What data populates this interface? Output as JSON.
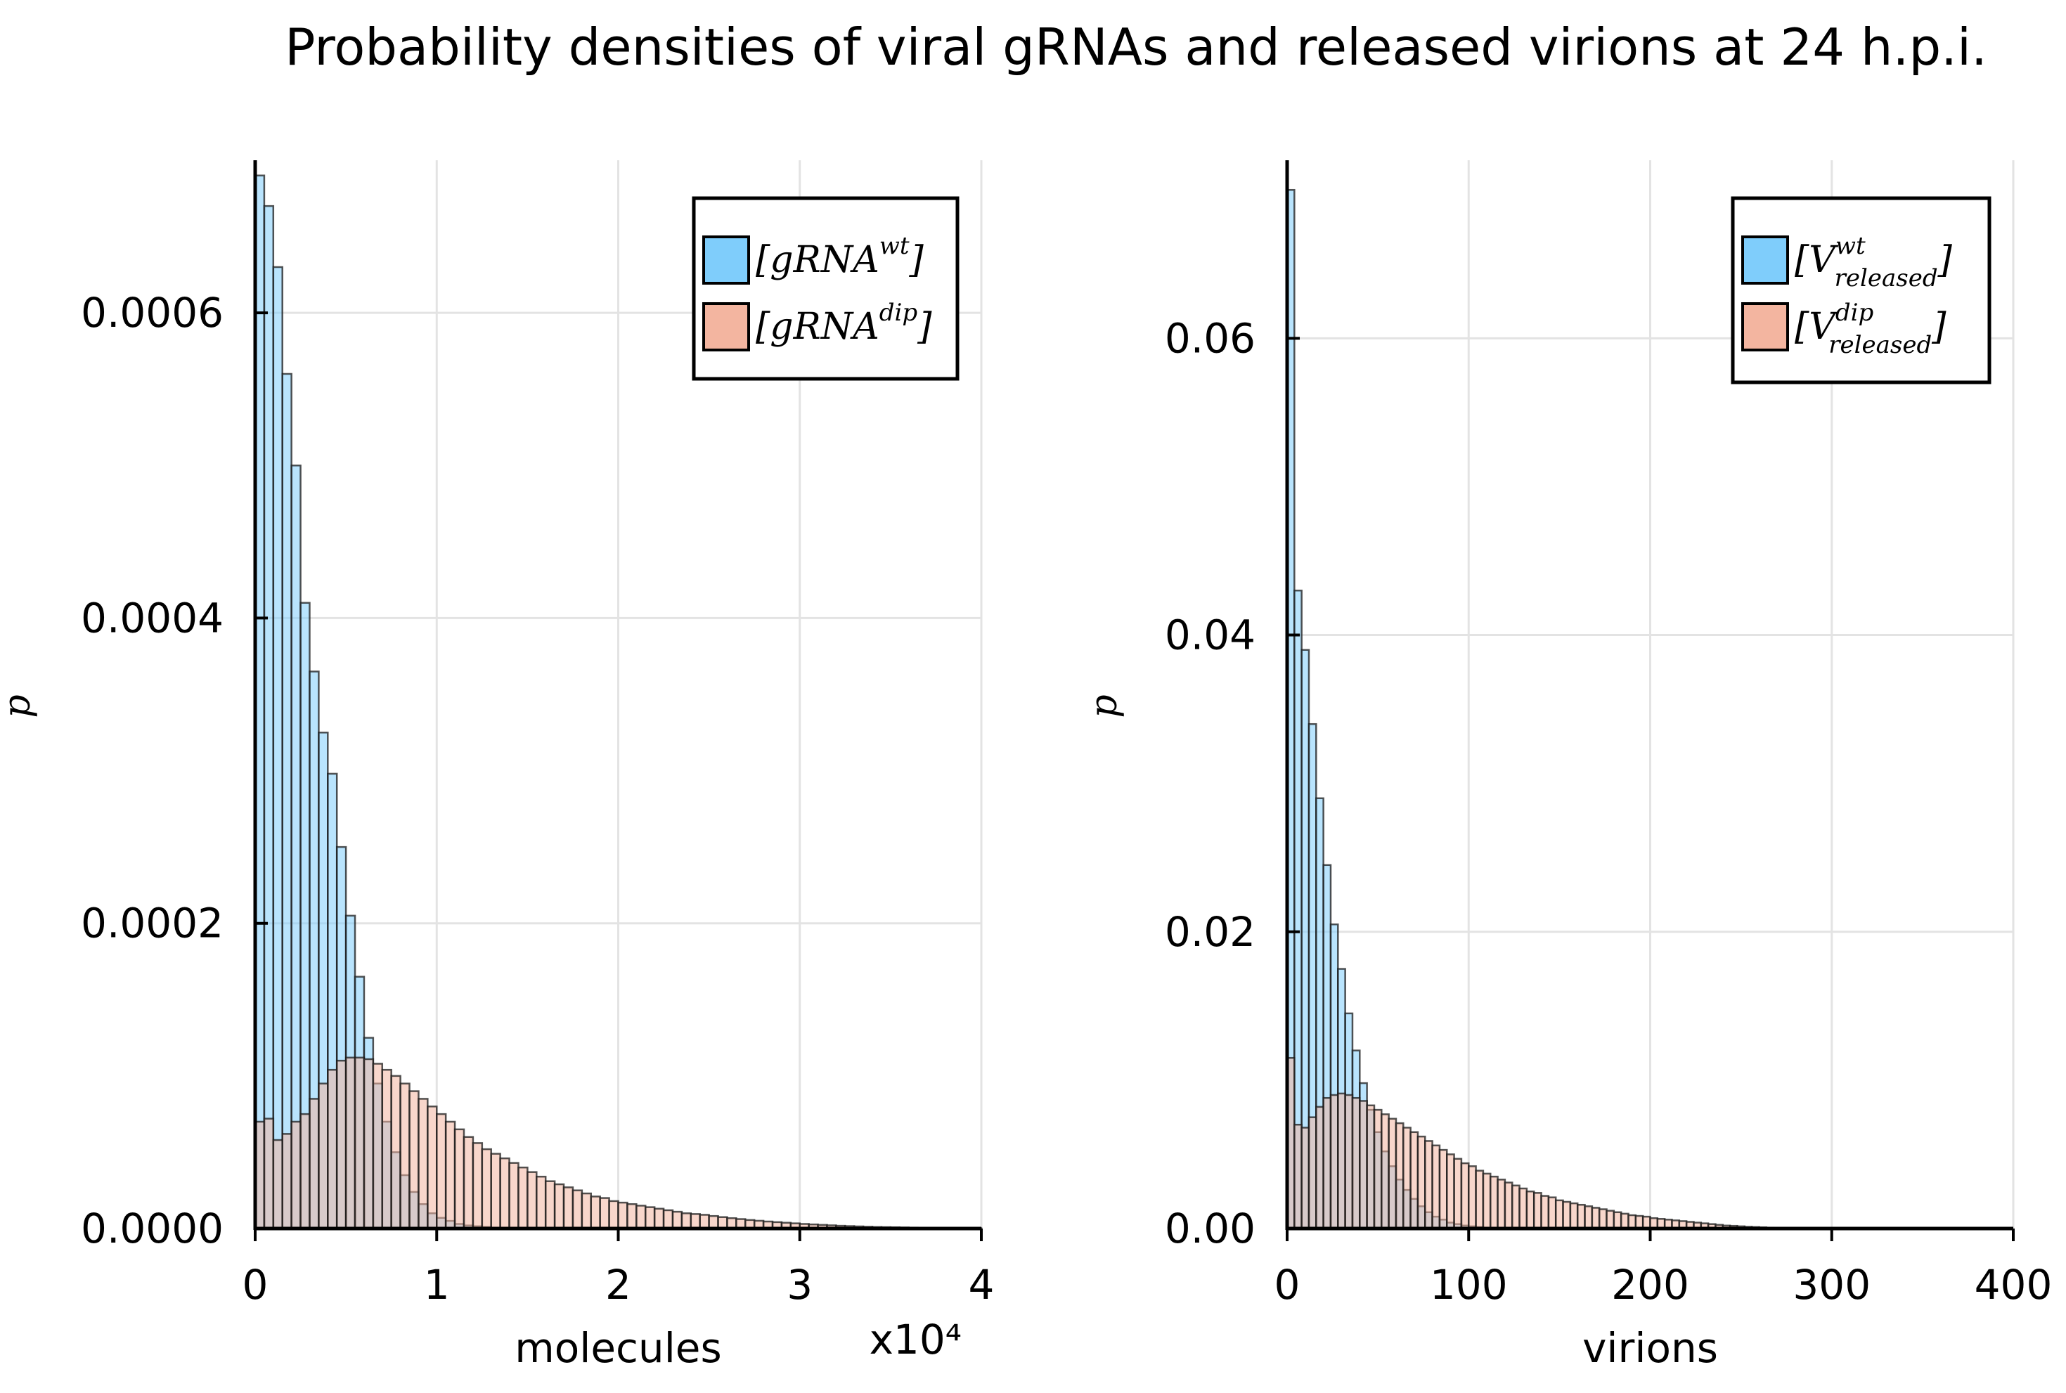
{
  "figure": {
    "title": "Probability densities of viral gRNAs and released virions at 24 h.p.i."
  },
  "colors": {
    "wt": "#7fcdfb",
    "dip": "#f3b5a0",
    "bar_outline": "#1a1a1a",
    "grid": "#e3e3e3"
  },
  "chart_data": [
    {
      "type": "bar",
      "title": "",
      "xlabel": "molecules",
      "ylabel": "p",
      "xlim": [
        0,
        40000
      ],
      "ylim": [
        0,
        0.0007
      ],
      "x_ticks": [
        "0",
        "1",
        "2",
        "3",
        "4"
      ],
      "x_tick_values": [
        0,
        10000,
        20000,
        30000,
        40000
      ],
      "x_multiplier": "x10⁴",
      "y_ticks": [
        "0.0000",
        "0.0002",
        "0.0004",
        "0.0006"
      ],
      "y_tick_values": [
        0,
        0.0002,
        0.0004,
        0.0006
      ],
      "grid": true,
      "legend_position": "top-right",
      "bin_width": 500,
      "series": [
        {
          "name": "wt",
          "legend": {
            "base": "[gRNA",
            "sup": "wt",
            "close": "]"
          },
          "values": [
            0.00069,
            0.00067,
            0.00063,
            0.00056,
            0.0005,
            0.00041,
            0.000365,
            0.000325,
            0.000298,
            0.00025,
            0.000205,
            0.000165,
            0.000125,
            9.5e-05,
            7e-05,
            5e-05,
            3.5e-05,
            2.4e-05,
            1.6e-05,
            1e-05,
            7e-06,
            5e-06,
            3e-06,
            2e-06,
            1.5e-06,
            1e-06
          ]
        },
        {
          "name": "dip",
          "legend": {
            "base": "[gRNA",
            "sup": "dip",
            "close": "]"
          },
          "values": [
            7e-05,
            7.2e-05,
            5.8e-05,
            6.2e-05,
            7e-05,
            7.5e-05,
            8.5e-05,
            9.5e-05,
            0.000104,
            0.00011,
            0.000112,
            0.000112,
            0.000111,
            0.000108,
            0.000104,
            0.0001,
            9.5e-05,
            9e-05,
            8.5e-05,
            8e-05,
            7.5e-05,
            7e-05,
            6.5e-05,
            6e-05,
            5.6e-05,
            5.2e-05,
            4.9e-05,
            4.6e-05,
            4.3e-05,
            4e-05,
            3.7e-05,
            3.4e-05,
            3.1e-05,
            2.9e-05,
            2.7e-05,
            2.5e-05,
            2.3e-05,
            2.1e-05,
            2e-05,
            1.8e-05,
            1.7e-05,
            1.6e-05,
            1.5e-05,
            1.4e-05,
            1.3e-05,
            1.2e-05,
            1.1e-05,
            1e-05,
            9.5e-06,
            9e-06,
            8.2e-06,
            7.5e-06,
            6.8e-06,
            6.2e-06,
            5.6e-06,
            5.1e-06,
            4.6e-06,
            4.2e-06,
            3.8e-06,
            3.4e-06,
            3e-06,
            2.7e-06,
            2.4e-06,
            2.1e-06,
            1.8e-06,
            1.6e-06,
            1.4e-06,
            1.2e-06,
            1e-06,
            9e-07,
            8e-07,
            7e-07,
            6e-07,
            5e-07,
            4e-07,
            4e-07,
            3e-07,
            3e-07,
            2e-07,
            2e-07
          ]
        }
      ]
    },
    {
      "type": "bar",
      "title": "",
      "xlabel": "virions",
      "ylabel": "p",
      "xlim": [
        0,
        400
      ],
      "ylim": [
        0,
        0.072
      ],
      "x_ticks": [
        "0",
        "100",
        "200",
        "300",
        "400"
      ],
      "x_tick_values": [
        0,
        100,
        200,
        300,
        400
      ],
      "y_ticks": [
        "0.00",
        "0.02",
        "0.04",
        "0.06"
      ],
      "y_tick_values": [
        0,
        0.02,
        0.04,
        0.06
      ],
      "grid": true,
      "legend_position": "top-right",
      "bin_width": 4,
      "series": [
        {
          "name": "wt",
          "legend": {
            "base": "[V",
            "sup": "wt",
            "sub": "released",
            "close": "]"
          },
          "values": [
            0.07,
            0.043,
            0.039,
            0.034,
            0.029,
            0.0245,
            0.0205,
            0.0175,
            0.0145,
            0.012,
            0.0098,
            0.008,
            0.0065,
            0.0052,
            0.0042,
            0.0033,
            0.0026,
            0.002,
            0.0015,
            0.0011,
            0.0008,
            0.0006,
            0.0004,
            0.0003,
            0.0002,
            0.00015,
            0.0001
          ]
        },
        {
          "name": "dip",
          "legend": {
            "base": "[V",
            "sup": "dip",
            "sub": "released",
            "close": "]"
          },
          "values": [
            0.0115,
            0.007,
            0.0068,
            0.0075,
            0.0082,
            0.0088,
            0.009,
            0.0091,
            0.009,
            0.0088,
            0.0086,
            0.0083,
            0.008,
            0.0077,
            0.0074,
            0.0071,
            0.0068,
            0.0065,
            0.0062,
            0.0059,
            0.0056,
            0.0053,
            0.005,
            0.0047,
            0.0044,
            0.0042,
            0.0039,
            0.0037,
            0.0035,
            0.0033,
            0.0031,
            0.0029,
            0.0027,
            0.0025,
            0.0024,
            0.0022,
            0.0021,
            0.0019,
            0.0018,
            0.0017,
            0.0016,
            0.0015,
            0.0014,
            0.0013,
            0.0012,
            0.0011,
            0.001,
            0.0009,
            0.00085,
            0.0008,
            0.0007,
            0.00065,
            0.0006,
            0.00055,
            0.0005,
            0.00045,
            0.0004,
            0.00035,
            0.0003,
            0.00025,
            0.0002,
            0.00018,
            0.00015,
            0.00012,
            0.0001,
            8e-05,
            6e-05,
            5e-05,
            4e-05,
            3e-05
          ]
        }
      ]
    }
  ]
}
